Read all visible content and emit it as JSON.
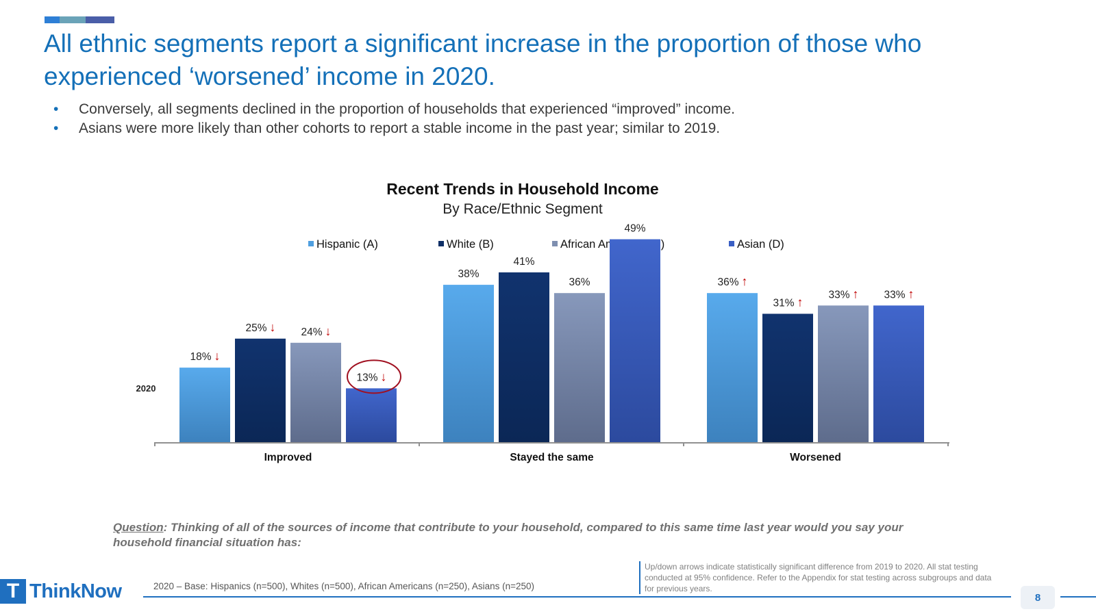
{
  "slide": {
    "title": "All ethnic segments report a significant increase in the proportion of those who experienced ‘worsened’ income in 2020.",
    "bullets": [
      "Conversely, all segments declined in the proportion of households that experienced “improved” income.",
      "Asians were more likely than other cohorts to report a stable income in the past year; similar to 2019."
    ],
    "question_label": "Question",
    "question_text": ": Thinking of all of the sources of income that contribute to your household, compared to this same time last year would you say your household financial situation has:",
    "base_note": "2020 – Base: Hispanics (n=500), Whites (n=500), African Americans (n=250), Asians (n=250)",
    "stat_note": "Up/down arrows indicate statistically significant difference from 2019 to 2020. All stat testing conducted at 95% confidence. Refer to the Appendix for stat testing across subgroups and data for previous years.",
    "page_number": "8",
    "logo_text": "ThinkNow",
    "logo_mark": "T",
    "bullet_glyph": "•"
  },
  "colors": {
    "title": "#1470b8",
    "accent": [
      "#2e7fd6",
      "#6aa3b8",
      "#4a5ea8"
    ],
    "series": [
      "#4f9fe0",
      "#0f2f66",
      "#7e8fb0",
      "#3a5fc4"
    ],
    "arrow": "#c00000",
    "highlight_circle": "#a01020"
  },
  "chart_data": {
    "type": "bar",
    "title": "Recent Trends in Household Income",
    "subtitle": "By Race/Ethnic Segment",
    "year_label": "2020",
    "categories": [
      "Improved",
      "Stayed the same",
      "Worsened"
    ],
    "series": [
      {
        "name": "Hispanic (A)",
        "values": [
          18,
          38,
          36
        ],
        "labels": [
          "18%",
          "38%",
          "36%"
        ]
      },
      {
        "name": "White (B)",
        "values": [
          25,
          41,
          31
        ],
        "labels": [
          "25%",
          "41%",
          "31%"
        ]
      },
      {
        "name": "African American (C)",
        "values": [
          24,
          36,
          33
        ],
        "labels": [
          "24%",
          "36%",
          "33%"
        ]
      },
      {
        "name": "Asian (D)",
        "values": [
          13,
          49,
          33
        ],
        "labels": [
          "13%",
          "49%",
          "33%"
        ]
      }
    ],
    "significance": [
      [
        "down",
        null,
        "up"
      ],
      [
        "down",
        null,
        "up"
      ],
      [
        "down",
        null,
        "up"
      ],
      [
        "down",
        null,
        "up"
      ]
    ],
    "highlight": {
      "series": 3,
      "category": 0
    },
    "arrow_up": "↑",
    "arrow_down": "↓",
    "ylim": [
      0,
      55
    ],
    "grid": false,
    "legend": "top"
  }
}
